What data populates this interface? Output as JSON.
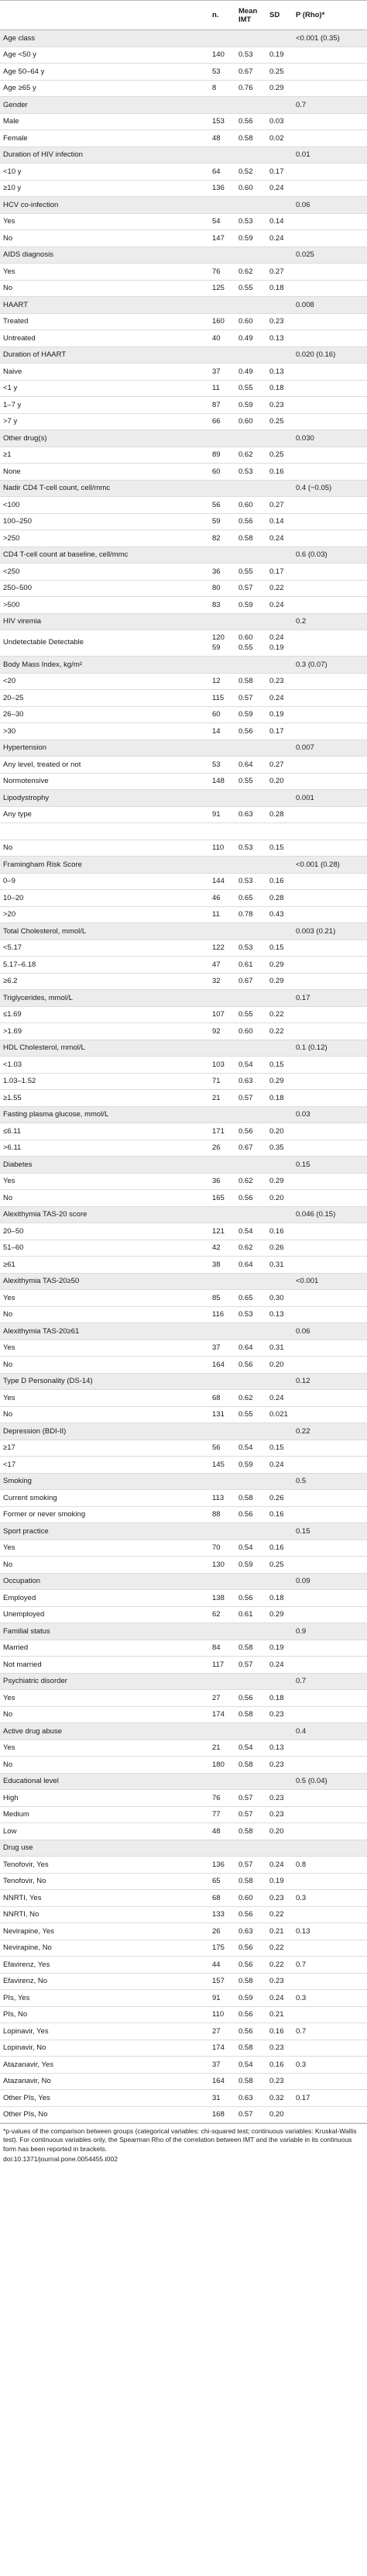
{
  "header": {
    "label": "",
    "n": "n.",
    "mean_imt": "Mean IMT",
    "sd": "SD",
    "p": "P (Rho)*"
  },
  "rows": [
    {
      "type": "section",
      "label": "Age class",
      "p": "<0.001 (0.35)"
    },
    {
      "type": "data",
      "label": "Age <50 y",
      "n": "140",
      "mean": "0.53",
      "sd": "0.19"
    },
    {
      "type": "data",
      "label": "Age 50–64 y",
      "n": "53",
      "mean": "0.67",
      "sd": "0.25"
    },
    {
      "type": "data",
      "label": "Age ≥65 y",
      "n": "8",
      "mean": "0.76",
      "sd": "0.29"
    },
    {
      "type": "section",
      "label": "Gender",
      "p": "0.7"
    },
    {
      "type": "data",
      "label": "Male",
      "n": "153",
      "mean": "0.56",
      "sd": "0.03"
    },
    {
      "type": "data",
      "label": "Female",
      "n": "48",
      "mean": "0.58",
      "sd": "0.02"
    },
    {
      "type": "section",
      "label": "Duration of HIV infection",
      "p": "0.01"
    },
    {
      "type": "data",
      "label": "<10 y",
      "n": "64",
      "mean": "0.52",
      "sd": "0.17"
    },
    {
      "type": "data",
      "label": "≥10 y",
      "n": "136",
      "mean": "0.60",
      "sd": "0.24"
    },
    {
      "type": "section",
      "label": "HCV co-infection",
      "p": "0.06"
    },
    {
      "type": "data",
      "label": "Yes",
      "n": "54",
      "mean": "0.53",
      "sd": "0.14"
    },
    {
      "type": "data",
      "label": "No",
      "n": "147",
      "mean": "0.59",
      "sd": "0.24"
    },
    {
      "type": "section",
      "label": "AIDS diagnosis",
      "p": "0.025"
    },
    {
      "type": "data",
      "label": "Yes",
      "n": "76",
      "mean": "0.62",
      "sd": "0.27"
    },
    {
      "type": "data",
      "label": "No",
      "n": "125",
      "mean": "0.55",
      "sd": "0.18"
    },
    {
      "type": "section",
      "label": "HAART",
      "p": "0.008"
    },
    {
      "type": "data",
      "label": "Treated",
      "n": "160",
      "mean": "0.60",
      "sd": "0.23"
    },
    {
      "type": "data",
      "label": "Untreated",
      "n": "40",
      "mean": "0.49",
      "sd": "0.13"
    },
    {
      "type": "section",
      "label": "Duration of HAART",
      "p": "0.020 (0.16)"
    },
    {
      "type": "data",
      "label": "Naive",
      "n": "37",
      "mean": "0.49",
      "sd": "0.13"
    },
    {
      "type": "data",
      "label": "<1 y",
      "n": "11",
      "mean": "0.55",
      "sd": "0.18"
    },
    {
      "type": "data",
      "label": "1–7 y",
      "n": "87",
      "mean": "0.59",
      "sd": "0.23"
    },
    {
      "type": "data",
      "label": ">7 y",
      "n": "66",
      "mean": "0.60",
      "sd": "0.25"
    },
    {
      "type": "section",
      "label": "Other drug(s)",
      "p": "0.030"
    },
    {
      "type": "data",
      "label": "≥1",
      "n": "89",
      "mean": "0.62",
      "sd": "0.25"
    },
    {
      "type": "data",
      "label": "None",
      "n": "60",
      "mean": "0.53",
      "sd": "0.16"
    },
    {
      "type": "section",
      "label": "Nadir CD4 T-cell count, cell/mmc",
      "p": "0.4 (−0.05)"
    },
    {
      "type": "data",
      "label": "<100",
      "n": "56",
      "mean": "0.60",
      "sd": "0.27"
    },
    {
      "type": "data",
      "label": "100–250",
      "n": "59",
      "mean": "0.56",
      "sd": "0.14"
    },
    {
      "type": "data",
      "label": ">250",
      "n": "82",
      "mean": "0.58",
      "sd": "0.24"
    },
    {
      "type": "section",
      "label": "CD4 T-cell count at baseline, cell/mmc",
      "p": "0.6 (0.03)"
    },
    {
      "type": "data",
      "label": "<250",
      "n": "36",
      "mean": "0.55",
      "sd": "0.17"
    },
    {
      "type": "data",
      "label": "250–500",
      "n": "80",
      "mean": "0.57",
      "sd": "0.22"
    },
    {
      "type": "data",
      "label": ">500",
      "n": "83",
      "mean": "0.59",
      "sd": "0.24"
    },
    {
      "type": "section",
      "label": "HIV viremia",
      "p": "0.2"
    },
    {
      "type": "tall",
      "label": "Undetectable Detectable",
      "n": "120 59",
      "mean": "0.60 0.55",
      "sd": "0.24 0.19"
    },
    {
      "type": "section",
      "label": "Body Mass Index, kg/m²",
      "p": "0.3 (0.07)"
    },
    {
      "type": "data",
      "label": "<20",
      "n": "12",
      "mean": "0.58",
      "sd": "0.23"
    },
    {
      "type": "data",
      "label": "20–25",
      "n": "115",
      "mean": "0.57",
      "sd": "0.24"
    },
    {
      "type": "data",
      "label": "26–30",
      "n": "60",
      "mean": "0.59",
      "sd": "0.19"
    },
    {
      "type": "data",
      "label": ">30",
      "n": "14",
      "mean": "0.56",
      "sd": "0.17"
    },
    {
      "type": "section",
      "label": "Hypertension",
      "p": "0.007"
    },
    {
      "type": "data",
      "label": "Any level, treated or not",
      "n": "53",
      "mean": "0.64",
      "sd": "0.27"
    },
    {
      "type": "data",
      "label": "Normotensive",
      "n": "148",
      "mean": "0.55",
      "sd": "0.20"
    },
    {
      "type": "section",
      "label": "Lipodystrophy",
      "p": "0.001"
    },
    {
      "type": "data",
      "label": "Any type",
      "n": "91",
      "mean": "0.63",
      "sd": "0.28"
    },
    {
      "type": "data",
      "label": "",
      "n": "",
      "mean": "",
      "sd": ""
    },
    {
      "type": "data",
      "label": "No",
      "n": "110",
      "mean": "0.53",
      "sd": "0.15"
    },
    {
      "type": "section",
      "label": "Framingham Risk Score",
      "p": "<0.001 (0.28)"
    },
    {
      "type": "data",
      "label": "0–9",
      "n": "144",
      "mean": "0.53",
      "sd": "0.16"
    },
    {
      "type": "data",
      "label": "10–20",
      "n": "46",
      "mean": "0.65",
      "sd": "0.28"
    },
    {
      "type": "data",
      "label": ">20",
      "n": "11",
      "mean": "0.78",
      "sd": "0.43"
    },
    {
      "type": "section",
      "label": "Total Cholesterol, mmol/L",
      "p": "0.003 (0.21)"
    },
    {
      "type": "data",
      "label": "<5.17",
      "n": "122",
      "mean": "0.53",
      "sd": "0.15"
    },
    {
      "type": "data",
      "label": "5.17–6.18",
      "n": "47",
      "mean": "0.61",
      "sd": "0.29"
    },
    {
      "type": "data",
      "label": "≥6.2",
      "n": "32",
      "mean": "0.67",
      "sd": "0.29"
    },
    {
      "type": "section",
      "label": "Triglycerides, mmol/L",
      "p": "0.17"
    },
    {
      "type": "data",
      "label": "≤1.69",
      "n": "107",
      "mean": "0.55",
      "sd": "0.22"
    },
    {
      "type": "data",
      "label": ">1.69",
      "n": "92",
      "mean": "0.60",
      "sd": "0.22"
    },
    {
      "type": "section",
      "label": "HDL Cholesterol, mmol/L",
      "p": "0.1 (0.12)"
    },
    {
      "type": "data",
      "label": "<1.03",
      "n": "103",
      "mean": "0.54",
      "sd": "0.15"
    },
    {
      "type": "data",
      "label": "1.03–1.52",
      "n": "71",
      "mean": "0.63",
      "sd": "0.29"
    },
    {
      "type": "data",
      "label": "≥1.55",
      "n": "21",
      "mean": "0.57",
      "sd": "0.18"
    },
    {
      "type": "section",
      "label": "Fasting plasma glucose, mmol/L",
      "p": "0.03"
    },
    {
      "type": "data",
      "label": "≤6.11",
      "n": "171",
      "mean": "0.56",
      "sd": "0.20"
    },
    {
      "type": "data",
      "label": ">6.11",
      "n": "26",
      "mean": "0.67",
      "sd": "0.35"
    },
    {
      "type": "section",
      "label": "Diabetes",
      "p": "0.15"
    },
    {
      "type": "data",
      "label": "Yes",
      "n": "36",
      "mean": "0.62",
      "sd": "0.29"
    },
    {
      "type": "data",
      "label": "No",
      "n": "165",
      "mean": "0.56",
      "sd": "0.20"
    },
    {
      "type": "section",
      "label": "Alexithymia TAS-20 score",
      "p": "0.046 (0.15)"
    },
    {
      "type": "data",
      "label": "20–50",
      "n": "121",
      "mean": "0.54",
      "sd": "0.16"
    },
    {
      "type": "data",
      "label": "51–60",
      "n": "42",
      "mean": "0.62",
      "sd": "0.26"
    },
    {
      "type": "data",
      "label": "≥61",
      "n": "38",
      "mean": "0.64",
      "sd": "0.31"
    },
    {
      "type": "section",
      "label": "Alexithymia TAS-20≥50",
      "p": "<0.001"
    },
    {
      "type": "data",
      "label": "Yes",
      "n": "85",
      "mean": "0.65",
      "sd": "0.30"
    },
    {
      "type": "data",
      "label": "No",
      "n": "116",
      "mean": "0.53",
      "sd": "0.13"
    },
    {
      "type": "section",
      "label": "Alexithymia TAS-20≥61",
      "p": "0.06"
    },
    {
      "type": "data",
      "label": "Yes",
      "n": "37",
      "mean": "0.64",
      "sd": "0.31"
    },
    {
      "type": "data",
      "label": "No",
      "n": "164",
      "mean": "0.56",
      "sd": "0.20"
    },
    {
      "type": "section",
      "label": "Type D Personality (DS-14)",
      "p": "0.12"
    },
    {
      "type": "data",
      "label": "Yes",
      "n": "68",
      "mean": "0.62",
      "sd": "0.24"
    },
    {
      "type": "data",
      "label": "No",
      "n": "131",
      "mean": "0.55",
      "sd": "0.021"
    },
    {
      "type": "section",
      "label": "Depression (BDI-II)",
      "p": "0.22"
    },
    {
      "type": "data",
      "label": "≥17",
      "n": "56",
      "mean": "0.54",
      "sd": "0.15"
    },
    {
      "type": "data",
      "label": "<17",
      "n": "145",
      "mean": "0.59",
      "sd": "0.24"
    },
    {
      "type": "section",
      "label": "Smoking",
      "p": "0.5"
    },
    {
      "type": "data",
      "label": "Current smoking",
      "n": "113",
      "mean": "0.58",
      "sd": "0.26"
    },
    {
      "type": "data",
      "label": "Former or never smoking",
      "n": "88",
      "mean": "0.56",
      "sd": "0.16"
    },
    {
      "type": "section",
      "label": "Sport practice",
      "p": "0.15"
    },
    {
      "type": "data",
      "label": "Yes",
      "n": "70",
      "mean": "0.54",
      "sd": "0.16"
    },
    {
      "type": "data",
      "label": "No",
      "n": "130",
      "mean": "0.59",
      "sd": "0.25"
    },
    {
      "type": "section",
      "label": "Occupation",
      "p": "0.09"
    },
    {
      "type": "data",
      "label": "Employed",
      "n": "138",
      "mean": "0.56",
      "sd": "0.18"
    },
    {
      "type": "data",
      "label": "Unemployed",
      "n": "62",
      "mean": "0.61",
      "sd": "0.29"
    },
    {
      "type": "section",
      "label": "Familial status",
      "p": "0.9"
    },
    {
      "type": "data",
      "label": "Married",
      "n": "84",
      "mean": "0.58",
      "sd": "0.19"
    },
    {
      "type": "data",
      "label": "Not married",
      "n": "117",
      "mean": "0.57",
      "sd": "0.24"
    },
    {
      "type": "section",
      "label": "Psychiatric disorder",
      "p": "0.7"
    },
    {
      "type": "data",
      "label": "Yes",
      "n": "27",
      "mean": "0.56",
      "sd": "0.18"
    },
    {
      "type": "data",
      "label": "No",
      "n": "174",
      "mean": "0.58",
      "sd": "0.23"
    },
    {
      "type": "section",
      "label": "Active drug abuse",
      "p": "0.4"
    },
    {
      "type": "data",
      "label": "Yes",
      "n": "21",
      "mean": "0.54",
      "sd": "0.13"
    },
    {
      "type": "data",
      "label": "No",
      "n": "180",
      "mean": "0.58",
      "sd": "0.23"
    },
    {
      "type": "section",
      "label": "Educational level",
      "p": "0.5 (0.04)"
    },
    {
      "type": "data",
      "label": "High",
      "n": "76",
      "mean": "0.57",
      "sd": "0.23"
    },
    {
      "type": "data",
      "label": "Medium",
      "n": "77",
      "mean": "0.57",
      "sd": "0.23"
    },
    {
      "type": "data",
      "label": "Low",
      "n": "48",
      "mean": "0.58",
      "sd": "0.20"
    },
    {
      "type": "section",
      "label": "Drug use",
      "p": ""
    },
    {
      "type": "data",
      "label": "Tenofovir, Yes",
      "n": "136",
      "mean": "0.57",
      "sd": "0.24",
      "p": "0.8"
    },
    {
      "type": "data",
      "label": "Tenofovir, No",
      "n": "65",
      "mean": "0.58",
      "sd": "0.19"
    },
    {
      "type": "data",
      "label": "NNRTI, Yes",
      "n": "68",
      "mean": "0.60",
      "sd": "0.23",
      "p": "0.3"
    },
    {
      "type": "data",
      "label": "NNRTI, No",
      "n": "133",
      "mean": "0.56",
      "sd": "0.22"
    },
    {
      "type": "data",
      "label": "Nevirapine, Yes",
      "n": "26",
      "mean": "0.63",
      "sd": "0.21",
      "p": "0.13"
    },
    {
      "type": "data",
      "label": "Nevirapine, No",
      "n": "175",
      "mean": "0.56",
      "sd": "0.22"
    },
    {
      "type": "data",
      "label": "Efavirenz, Yes",
      "n": "44",
      "mean": "0.56",
      "sd": "0.22",
      "p": "0.7"
    },
    {
      "type": "data",
      "label": "Efavirenz, No",
      "n": "157",
      "mean": "0.58",
      "sd": "0.23"
    },
    {
      "type": "data",
      "label": "PIs, Yes",
      "n": "91",
      "mean": "0.59",
      "sd": "0.24",
      "p": "0.3"
    },
    {
      "type": "data",
      "label": "PIs, No",
      "n": "110",
      "mean": "0.56",
      "sd": "0.21"
    },
    {
      "type": "data",
      "label": "Lopinavir, Yes",
      "n": "27",
      "mean": "0.56",
      "sd": "0.16",
      "p": "0.7"
    },
    {
      "type": "data",
      "label": "Lopinavir, No",
      "n": "174",
      "mean": "0.58",
      "sd": "0.23"
    },
    {
      "type": "data",
      "label": "Atazanavir, Yes",
      "n": "37",
      "mean": "0.54",
      "sd": "0.16",
      "p": "0.3"
    },
    {
      "type": "data",
      "label": "Atazanavir, No",
      "n": "164",
      "mean": "0.58",
      "sd": "0.23"
    },
    {
      "type": "data",
      "label": "Other PIs, Yes",
      "n": "31",
      "mead": "",
      "mean": "0.63",
      "sd": "0.32",
      "p": "0.17"
    },
    {
      "type": "data",
      "label": "Other PIs, No",
      "n": "168",
      "mean": "0.57",
      "sd": "0.20"
    }
  ],
  "footnote": "*p-values of the comparison between groups (categorical variables: chi-squared test; continuous variables: Kruskal-Wallis test). For continuous variables only, the Spearman Rho of the correlation between IMT and the variable in its continuous form has been reported in brackets.",
  "doi": "doi:10.1371/journal.pone.0054455.t002"
}
